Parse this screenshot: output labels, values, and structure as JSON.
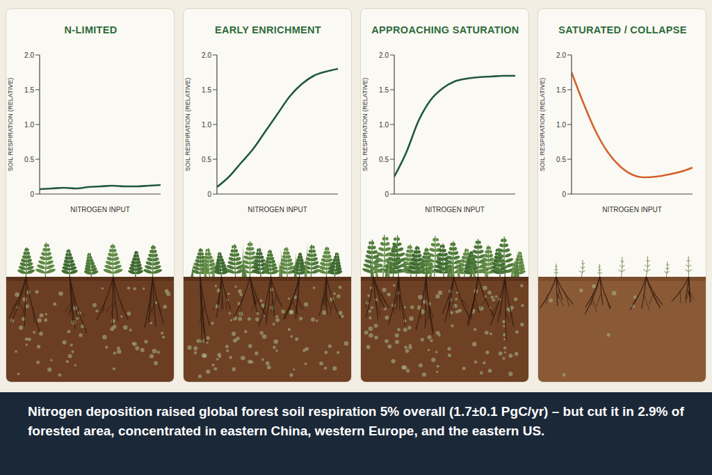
{
  "chart_data": [
    {
      "type": "line",
      "title": "N-LIMITED",
      "x_label": "NITROGEN INPUT",
      "y_label": "SOIL RESPIRATION (RELATIVE)",
      "x": [
        0,
        1,
        2,
        3,
        4,
        5,
        6,
        7,
        8,
        9,
        10
      ],
      "values": [
        0.07,
        0.08,
        0.09,
        0.08,
        0.1,
        0.11,
        0.12,
        0.11,
        0.11,
        0.12,
        0.13
      ],
      "color": "#1f5a3a",
      "xlim": [
        0,
        10
      ],
      "xticks": [],
      "ylim": [
        0,
        2
      ],
      "yticks": [
        0,
        0.5,
        {
          "value": 1,
          "label": "1.0"
        },
        1.5,
        {
          "value": 2,
          "label": "2.0"
        }
      ],
      "tick_labels": "y",
      "grid": false
    },
    {
      "type": "line",
      "title": "EARLY ENRICHMENT",
      "x_label": "NITROGEN INPUT",
      "y_label": "SOIL RESPIRATION (RELATIVE)",
      "x": [
        0,
        1,
        2,
        3,
        4,
        5,
        6,
        7,
        8,
        9,
        10
      ],
      "values": [
        0.1,
        0.25,
        0.45,
        0.65,
        0.9,
        1.15,
        1.4,
        1.58,
        1.7,
        1.76,
        1.8
      ],
      "color": "#1f5a3a",
      "xlim": [
        0,
        10
      ],
      "xticks": [],
      "ylim": [
        0,
        2
      ],
      "yticks": [
        0,
        0.5,
        {
          "value": 1,
          "label": "1.0"
        },
        1.5,
        {
          "value": 2,
          "label": "2.0"
        }
      ],
      "tick_labels": "y",
      "grid": false
    },
    {
      "type": "line",
      "title": "APPROACHING SATURATION",
      "x_label": "NITROGEN INPUT",
      "y_label": "SOIL RESPIRATION (RELATIVE)",
      "x": [
        0,
        1,
        2,
        3,
        4,
        5,
        6,
        7,
        8,
        9,
        10
      ],
      "values": [
        0.25,
        0.6,
        1.05,
        1.35,
        1.52,
        1.62,
        1.66,
        1.68,
        1.69,
        1.7,
        1.7
      ],
      "color": "#1f5a3a",
      "xlim": [
        0,
        10
      ],
      "xticks": [],
      "ylim": [
        0,
        2
      ],
      "yticks": [
        0,
        0.5,
        {
          "value": 1,
          "label": "1.0"
        },
        1.5,
        {
          "value": 2,
          "label": "2.0"
        }
      ],
      "tick_labels": "y",
      "grid": false
    },
    {
      "type": "line",
      "title": "SATURATED / COLLAPSE",
      "x_label": "NITROGEN INPUT",
      "y_label": "SOIL RESPIRATION (RELATIVE)",
      "x": [
        0,
        1,
        2,
        3,
        4,
        5,
        6,
        7,
        8,
        9,
        10
      ],
      "values": [
        1.75,
        1.3,
        0.9,
        0.6,
        0.4,
        0.28,
        0.24,
        0.25,
        0.28,
        0.32,
        0.38
      ],
      "color": "#d2622a",
      "xlim": [
        0,
        10
      ],
      "xticks": [],
      "ylim": [
        0,
        2
      ],
      "yticks": [
        0,
        0.5,
        {
          "value": 1,
          "label": "1.0"
        },
        1.5,
        {
          "value": 2,
          "label": "2.0"
        }
      ],
      "tick_labels": "y",
      "grid": false
    }
  ],
  "caption": "Nitrogen deposition raised global forest soil respiration 5% overall (1.7±0.1 PgC/yr) – but cut it in 2.9% of forested area, concentrated in eastern China, western Europe, and the eastern US."
}
